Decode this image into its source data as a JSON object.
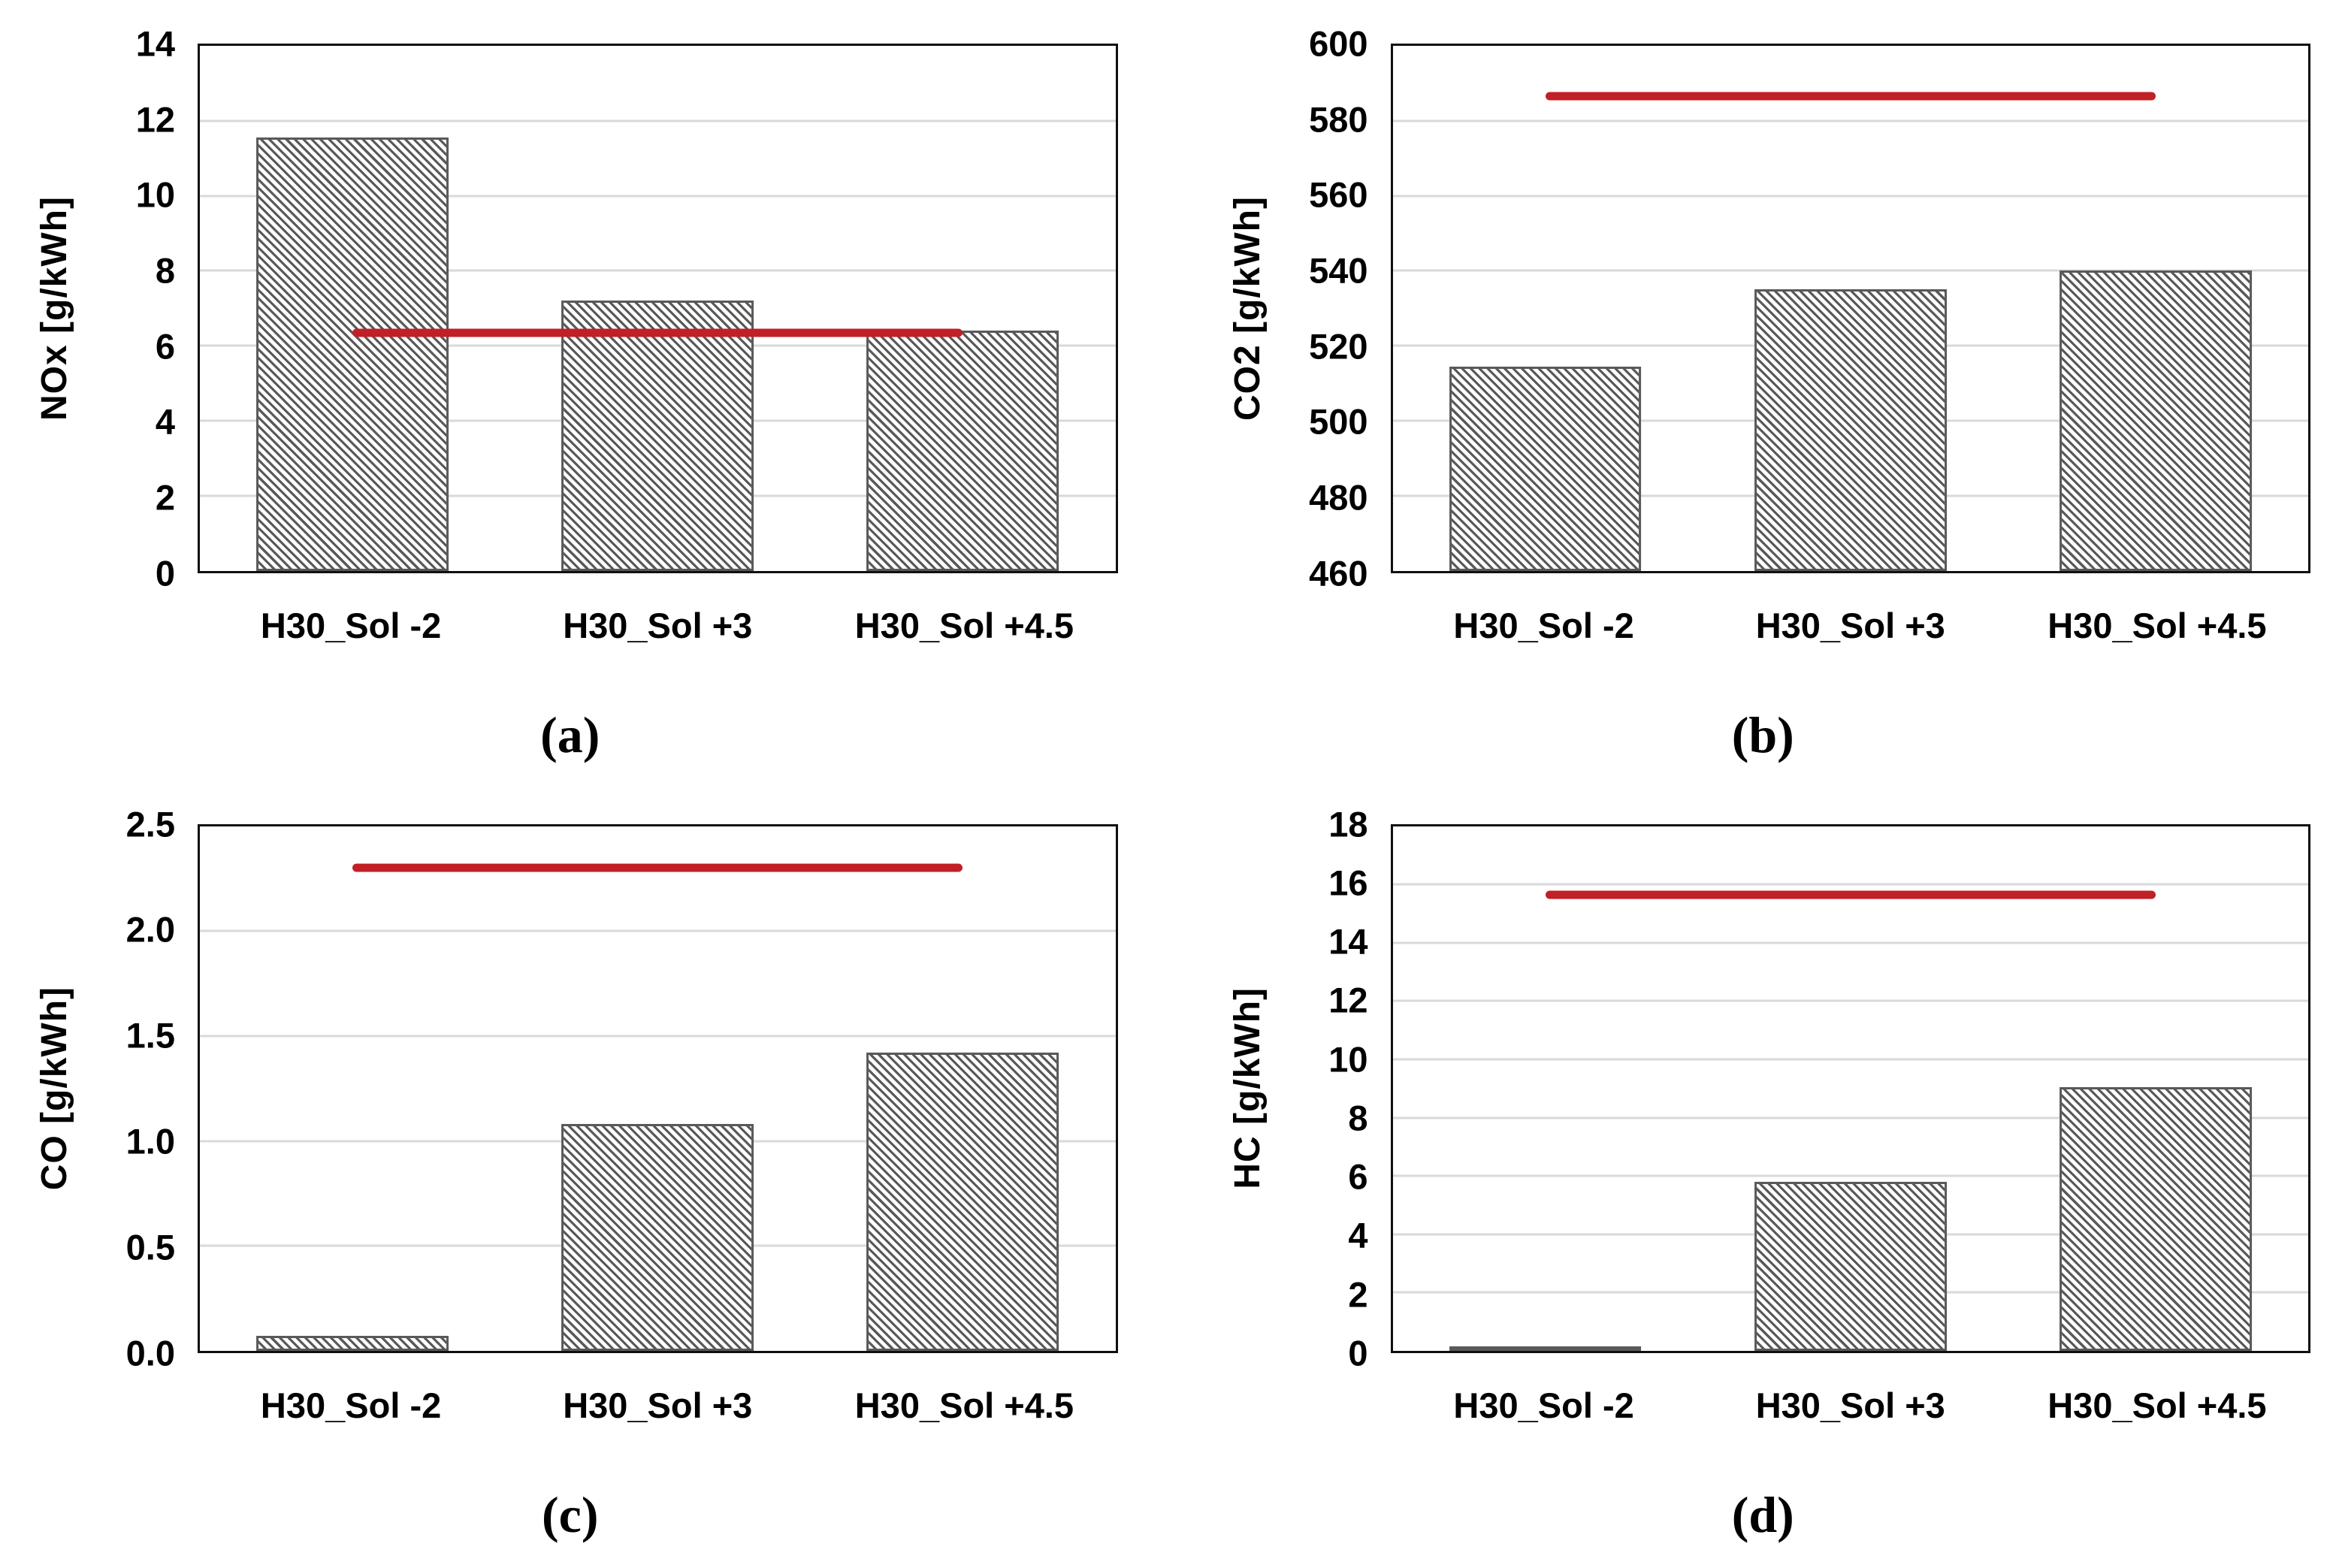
{
  "colors": {
    "ref_line": "#c02026",
    "bar_hatch": "#595959",
    "bar_border": "#595959",
    "bar_fill": "#ffffff",
    "gridline": "#d9d9d9",
    "axis": "#101010",
    "text": "#000000"
  },
  "chart_data": [
    {
      "id": "a",
      "type": "bar",
      "title": "",
      "ylabel": "NOx [g/kWh]",
      "xlabel": "",
      "categories": [
        "H30_Sol -2",
        "H30_Sol +3",
        "H30_Sol +4.5"
      ],
      "values": [
        11.55,
        7.2,
        6.4
      ],
      "ref_line": 6.35,
      "ylim": [
        0,
        14
      ],
      "ytick_step": 2,
      "yticks": [
        "0",
        "2",
        "4",
        "6",
        "8",
        "10",
        "12",
        "14"
      ],
      "caption": "(a)",
      "grid": true,
      "legend": "none",
      "bar_style": "diagonal-hatch"
    },
    {
      "id": "b",
      "type": "bar",
      "title": "",
      "ylabel": "CO2 [g/kWh]",
      "xlabel": "",
      "categories": [
        "H30_Sol -2",
        "H30_Sol +3",
        "H30_Sol +4.5"
      ],
      "values": [
        514.5,
        535,
        540
      ],
      "ref_line": 586.5,
      "ylim": [
        460,
        600
      ],
      "ytick_step": 20,
      "yticks": [
        "460",
        "480",
        "500",
        "520",
        "540",
        "560",
        "580",
        "600"
      ],
      "caption": "(b)",
      "grid": true,
      "legend": "none",
      "bar_style": "diagonal-hatch"
    },
    {
      "id": "c",
      "type": "bar",
      "title": "",
      "ylabel": "CO [g/kWh]",
      "xlabel": "",
      "categories": [
        "H30_Sol -2",
        "H30_Sol +3",
        "H30_Sol +4.5"
      ],
      "values": [
        0.07,
        1.08,
        1.42
      ],
      "ref_line": 2.3,
      "ylim": [
        0,
        2.5
      ],
      "ytick_step": 0.5,
      "yticks": [
        "0.0",
        "0.5",
        "1.0",
        "1.5",
        "2.0",
        "2.5"
      ],
      "caption": "(c)",
      "grid": true,
      "legend": "none",
      "bar_style": "diagonal-hatch"
    },
    {
      "id": "d",
      "type": "bar",
      "title": "",
      "ylabel": "HC [g/kWh]",
      "xlabel": "",
      "categories": [
        "H30_Sol -2",
        "H30_Sol +3",
        "H30_Sol +4.5"
      ],
      "values": [
        0.1,
        5.8,
        9.05
      ],
      "ref_line": 15.65,
      "ylim": [
        0,
        18
      ],
      "ytick_step": 2,
      "yticks": [
        "0",
        "2",
        "4",
        "6",
        "8",
        "10",
        "12",
        "14",
        "16",
        "18"
      ],
      "caption": "(d)",
      "grid": true,
      "legend": "none",
      "bar_style": "diagonal-hatch"
    }
  ]
}
